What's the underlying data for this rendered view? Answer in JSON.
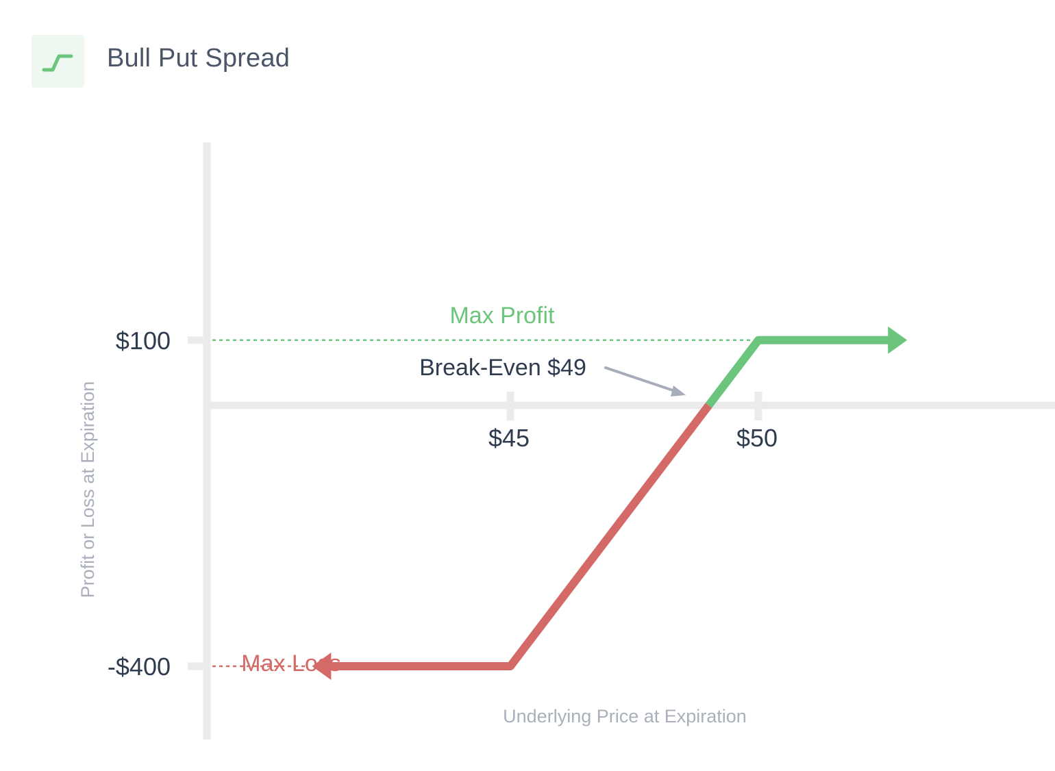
{
  "header": {
    "title": "Bull Put Spread",
    "icon": "bull-put-spread-icon"
  },
  "colors": {
    "profit": "#6cc57c",
    "loss": "#d46a68",
    "axis": "#ebebeb",
    "text": "#2f3b4f",
    "muted": "#a9b0bc",
    "arrow": "#a6acb8"
  },
  "chart_data": {
    "type": "line",
    "title": "Bull Put Spread",
    "xlabel": "Underlying Price at Expiration",
    "ylabel": "Profit or Loss at Expiration",
    "x_ticks": [
      {
        "value": 45,
        "label": "$45"
      },
      {
        "value": 50,
        "label": "$50"
      }
    ],
    "y_ticks": [
      {
        "value": 100,
        "label": "$100"
      },
      {
        "value": -400,
        "label": "-$400"
      }
    ],
    "series": [
      {
        "x": [
          41,
          45,
          49,
          50,
          53
        ],
        "y": [
          -400,
          -400,
          0,
          100,
          100
        ]
      }
    ],
    "break_even": 49,
    "max_profit": 100,
    "max_loss": -400,
    "annotations": {
      "max_profit_label": "Max Profit",
      "max_loss_label": "Max Loss",
      "break_even_label": "Break-Even $49"
    },
    "grid": false,
    "legend": "none"
  }
}
